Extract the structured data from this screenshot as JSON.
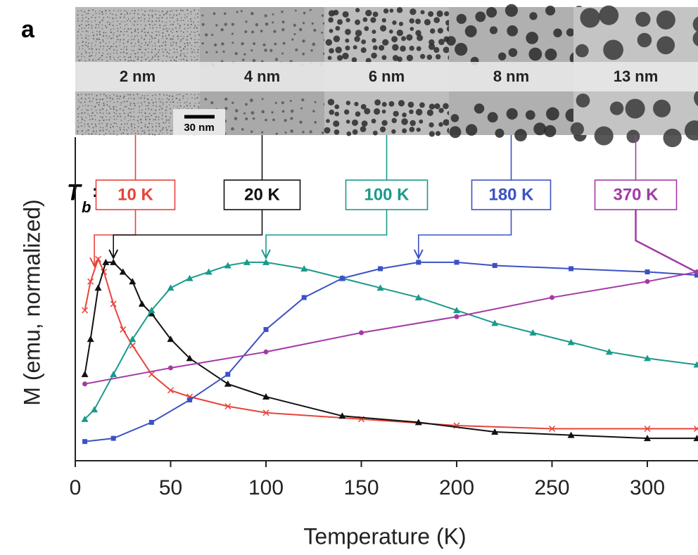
{
  "chart_data": {
    "type": "line",
    "panel_label": "a",
    "xlabel": "Temperature (K)",
    "ylabel": "M (emu, normalized)",
    "scale_bar": "30 nm",
    "tb_symbol": "T",
    "tb_sub": "b",
    "tb_eq": "=",
    "xlim": [
      0,
      326
    ],
    "xticks": [
      0,
      50,
      100,
      150,
      200,
      250,
      300
    ],
    "ylim": [
      0,
      1
    ],
    "series": [
      {
        "size_label": "2 nm",
        "tb": 10,
        "tb_label": "10 K",
        "color": "#e8433a",
        "marker": "cross",
        "x": [
          5,
          8,
          12,
          15,
          20,
          25,
          30,
          40,
          50,
          60,
          80,
          100,
          150,
          200,
          250,
          300,
          326
        ],
        "values": [
          0.47,
          0.56,
          0.63,
          0.59,
          0.49,
          0.41,
          0.36,
          0.27,
          0.22,
          0.2,
          0.17,
          0.15,
          0.13,
          0.11,
          0.1,
          0.1,
          0.1
        ]
      },
      {
        "size_label": "4 nm",
        "tb": 20,
        "tb_label": "20 K",
        "color": "#111111",
        "marker": "triangle",
        "x": [
          5,
          8,
          12,
          16,
          20,
          25,
          30,
          35,
          40,
          50,
          60,
          80,
          100,
          140,
          180,
          220,
          260,
          300,
          326
        ],
        "values": [
          0.27,
          0.38,
          0.54,
          0.62,
          0.62,
          0.59,
          0.56,
          0.49,
          0.46,
          0.38,
          0.32,
          0.24,
          0.2,
          0.14,
          0.12,
          0.09,
          0.08,
          0.07,
          0.07
        ]
      },
      {
        "size_label": "6 nm",
        "tb": 100,
        "tb_label": "100 K",
        "color": "#1a9a8c",
        "marker": "triangle",
        "x": [
          5,
          10,
          20,
          30,
          40,
          50,
          60,
          70,
          80,
          90,
          100,
          120,
          140,
          160,
          180,
          200,
          220,
          240,
          260,
          280,
          300,
          326
        ],
        "values": [
          0.13,
          0.16,
          0.27,
          0.38,
          0.47,
          0.54,
          0.57,
          0.59,
          0.61,
          0.62,
          0.62,
          0.6,
          0.57,
          0.54,
          0.51,
          0.47,
          0.43,
          0.4,
          0.37,
          0.34,
          0.32,
          0.3
        ]
      },
      {
        "size_label": "8 nm",
        "tb": 180,
        "tb_label": "180 K",
        "color": "#3b52c4",
        "marker": "square",
        "x": [
          5,
          20,
          40,
          60,
          80,
          100,
          120,
          140,
          160,
          180,
          200,
          220,
          260,
          300,
          326
        ],
        "values": [
          0.06,
          0.07,
          0.12,
          0.19,
          0.27,
          0.41,
          0.51,
          0.57,
          0.6,
          0.62,
          0.62,
          0.61,
          0.6,
          0.59,
          0.58
        ]
      },
      {
        "size_label": "13 nm",
        "tb": 370,
        "tb_label": "370 K",
        "color": "#a23aa6",
        "marker": "circle",
        "x": [
          5,
          50,
          100,
          150,
          200,
          250,
          300,
          326
        ],
        "values": [
          0.24,
          0.29,
          0.34,
          0.4,
          0.45,
          0.51,
          0.56,
          0.59
        ]
      }
    ]
  }
}
